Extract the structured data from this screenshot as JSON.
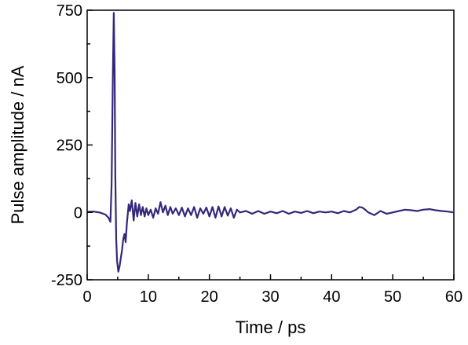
{
  "chart_data": {
    "type": "line",
    "title": "",
    "xlabel": "Time / ps",
    "ylabel": "Pulse amplitude / nA",
    "xlim": [
      0,
      60
    ],
    "ylim": [
      -250,
      750
    ],
    "xticks": [
      0,
      10,
      20,
      30,
      40,
      50,
      60
    ],
    "yticks": [
      -250,
      0,
      250,
      500,
      750
    ],
    "xtick_labels": [
      "0",
      "10",
      "20",
      "30",
      "40",
      "50",
      "60"
    ],
    "ytick_labels": [
      "-250",
      "0",
      "250",
      "500",
      "750"
    ],
    "grid": false,
    "legend": "none",
    "series": [
      {
        "color": "#33297a",
        "x": [
          0,
          1,
          2,
          3,
          3.5,
          3.8,
          4.0,
          4.2,
          4.35,
          4.5,
          4.6,
          4.75,
          4.9,
          5.1,
          5.3,
          5.5,
          5.7,
          5.9,
          6.1,
          6.3,
          6.5,
          6.8,
          7.0,
          7.3,
          7.6,
          7.9,
          8.2,
          8.5,
          8.8,
          9.1,
          9.4,
          9.7,
          10.0,
          10.4,
          10.8,
          11.2,
          11.6,
          12.0,
          12.4,
          12.8,
          13.2,
          13.6,
          14.0,
          14.5,
          15,
          15.5,
          16,
          16.5,
          17,
          17.5,
          18,
          18.5,
          19,
          19.5,
          20,
          20.5,
          21,
          21.5,
          22,
          22.5,
          23,
          23.5,
          24,
          24.5,
          25,
          26,
          27,
          28,
          29,
          30,
          31,
          32,
          33,
          34,
          35,
          36,
          37,
          38,
          39,
          40,
          41,
          42,
          43,
          44,
          44.5,
          45,
          45.5,
          46,
          47,
          48,
          49,
          50,
          51,
          52,
          53,
          54,
          55,
          56,
          57,
          58,
          59,
          60
        ],
        "y": [
          2,
          3,
          0,
          -8,
          -20,
          -35,
          100,
          500,
          740,
          520,
          150,
          -100,
          -180,
          -220,
          -200,
          -170,
          -140,
          -100,
          -80,
          -110,
          -40,
          30,
          5,
          45,
          -30,
          35,
          -15,
          30,
          -10,
          20,
          -15,
          15,
          -10,
          10,
          -20,
          15,
          -5,
          38,
          0,
          25,
          -10,
          20,
          -5,
          15,
          -10,
          18,
          -15,
          15,
          -10,
          20,
          -20,
          15,
          -5,
          18,
          -15,
          20,
          -20,
          22,
          -15,
          20,
          -12,
          15,
          -20,
          10,
          0,
          5,
          -5,
          5,
          -5,
          3,
          -3,
          5,
          -5,
          3,
          -2,
          5,
          -3,
          3,
          0,
          3,
          -3,
          5,
          0,
          10,
          20,
          18,
          10,
          0,
          -10,
          5,
          -5,
          0,
          5,
          10,
          8,
          5,
          10,
          12,
          8,
          5,
          3,
          0
        ]
      }
    ]
  }
}
